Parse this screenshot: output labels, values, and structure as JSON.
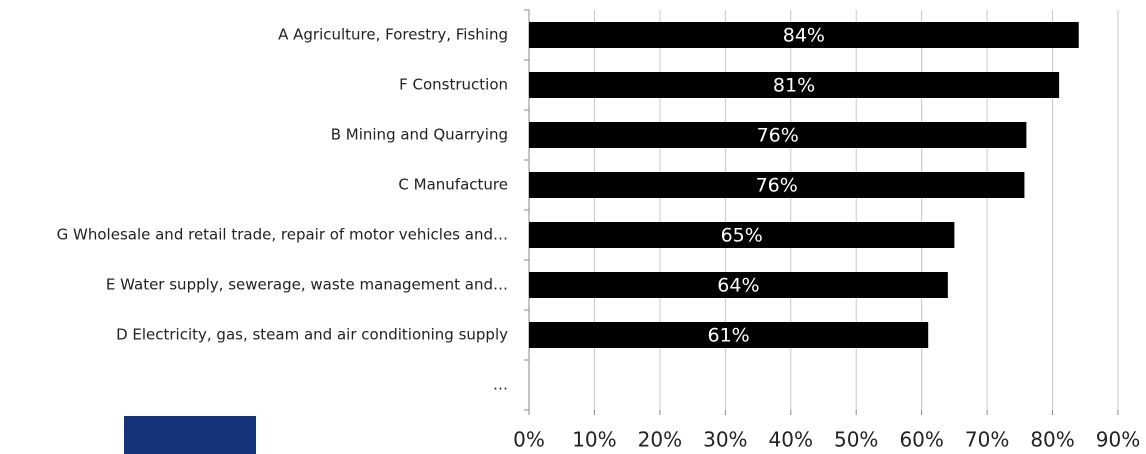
{
  "chart_data": {
    "type": "hbar",
    "categories": [
      "A Agriculture, Forestry, Fishing",
      "F Construction",
      "B Mining and Quarrying",
      "C Manufacture",
      "G Wholesale and retail trade, repair of motor vehicles and…",
      "E Water supply, sewerage, waste management and…",
      "D Electricity, gas, steam and air conditioning supply",
      "…"
    ],
    "values": [
      84,
      81,
      76,
      75.7,
      65,
      64,
      61,
      null
    ],
    "value_labels": [
      "84%",
      "81%",
      "76%",
      "76%",
      "65%",
      "64%",
      "61%",
      null
    ],
    "color": "#000000",
    "xlim": [
      0,
      90
    ],
    "xticks": [
      {
        "value": 0,
        "label": "0%"
      },
      {
        "value": 10,
        "label": "10%"
      },
      {
        "value": 20,
        "label": "20%"
      },
      {
        "value": 30,
        "label": "30%"
      },
      {
        "value": 40,
        "label": "40%"
      },
      {
        "value": 50,
        "label": "50%"
      },
      {
        "value": 60,
        "label": "60%"
      },
      {
        "value": 70,
        "label": "70%"
      },
      {
        "value": 80,
        "label": "80%"
      },
      {
        "value": 90,
        "label": "90%"
      }
    ],
    "grid": true
  }
}
